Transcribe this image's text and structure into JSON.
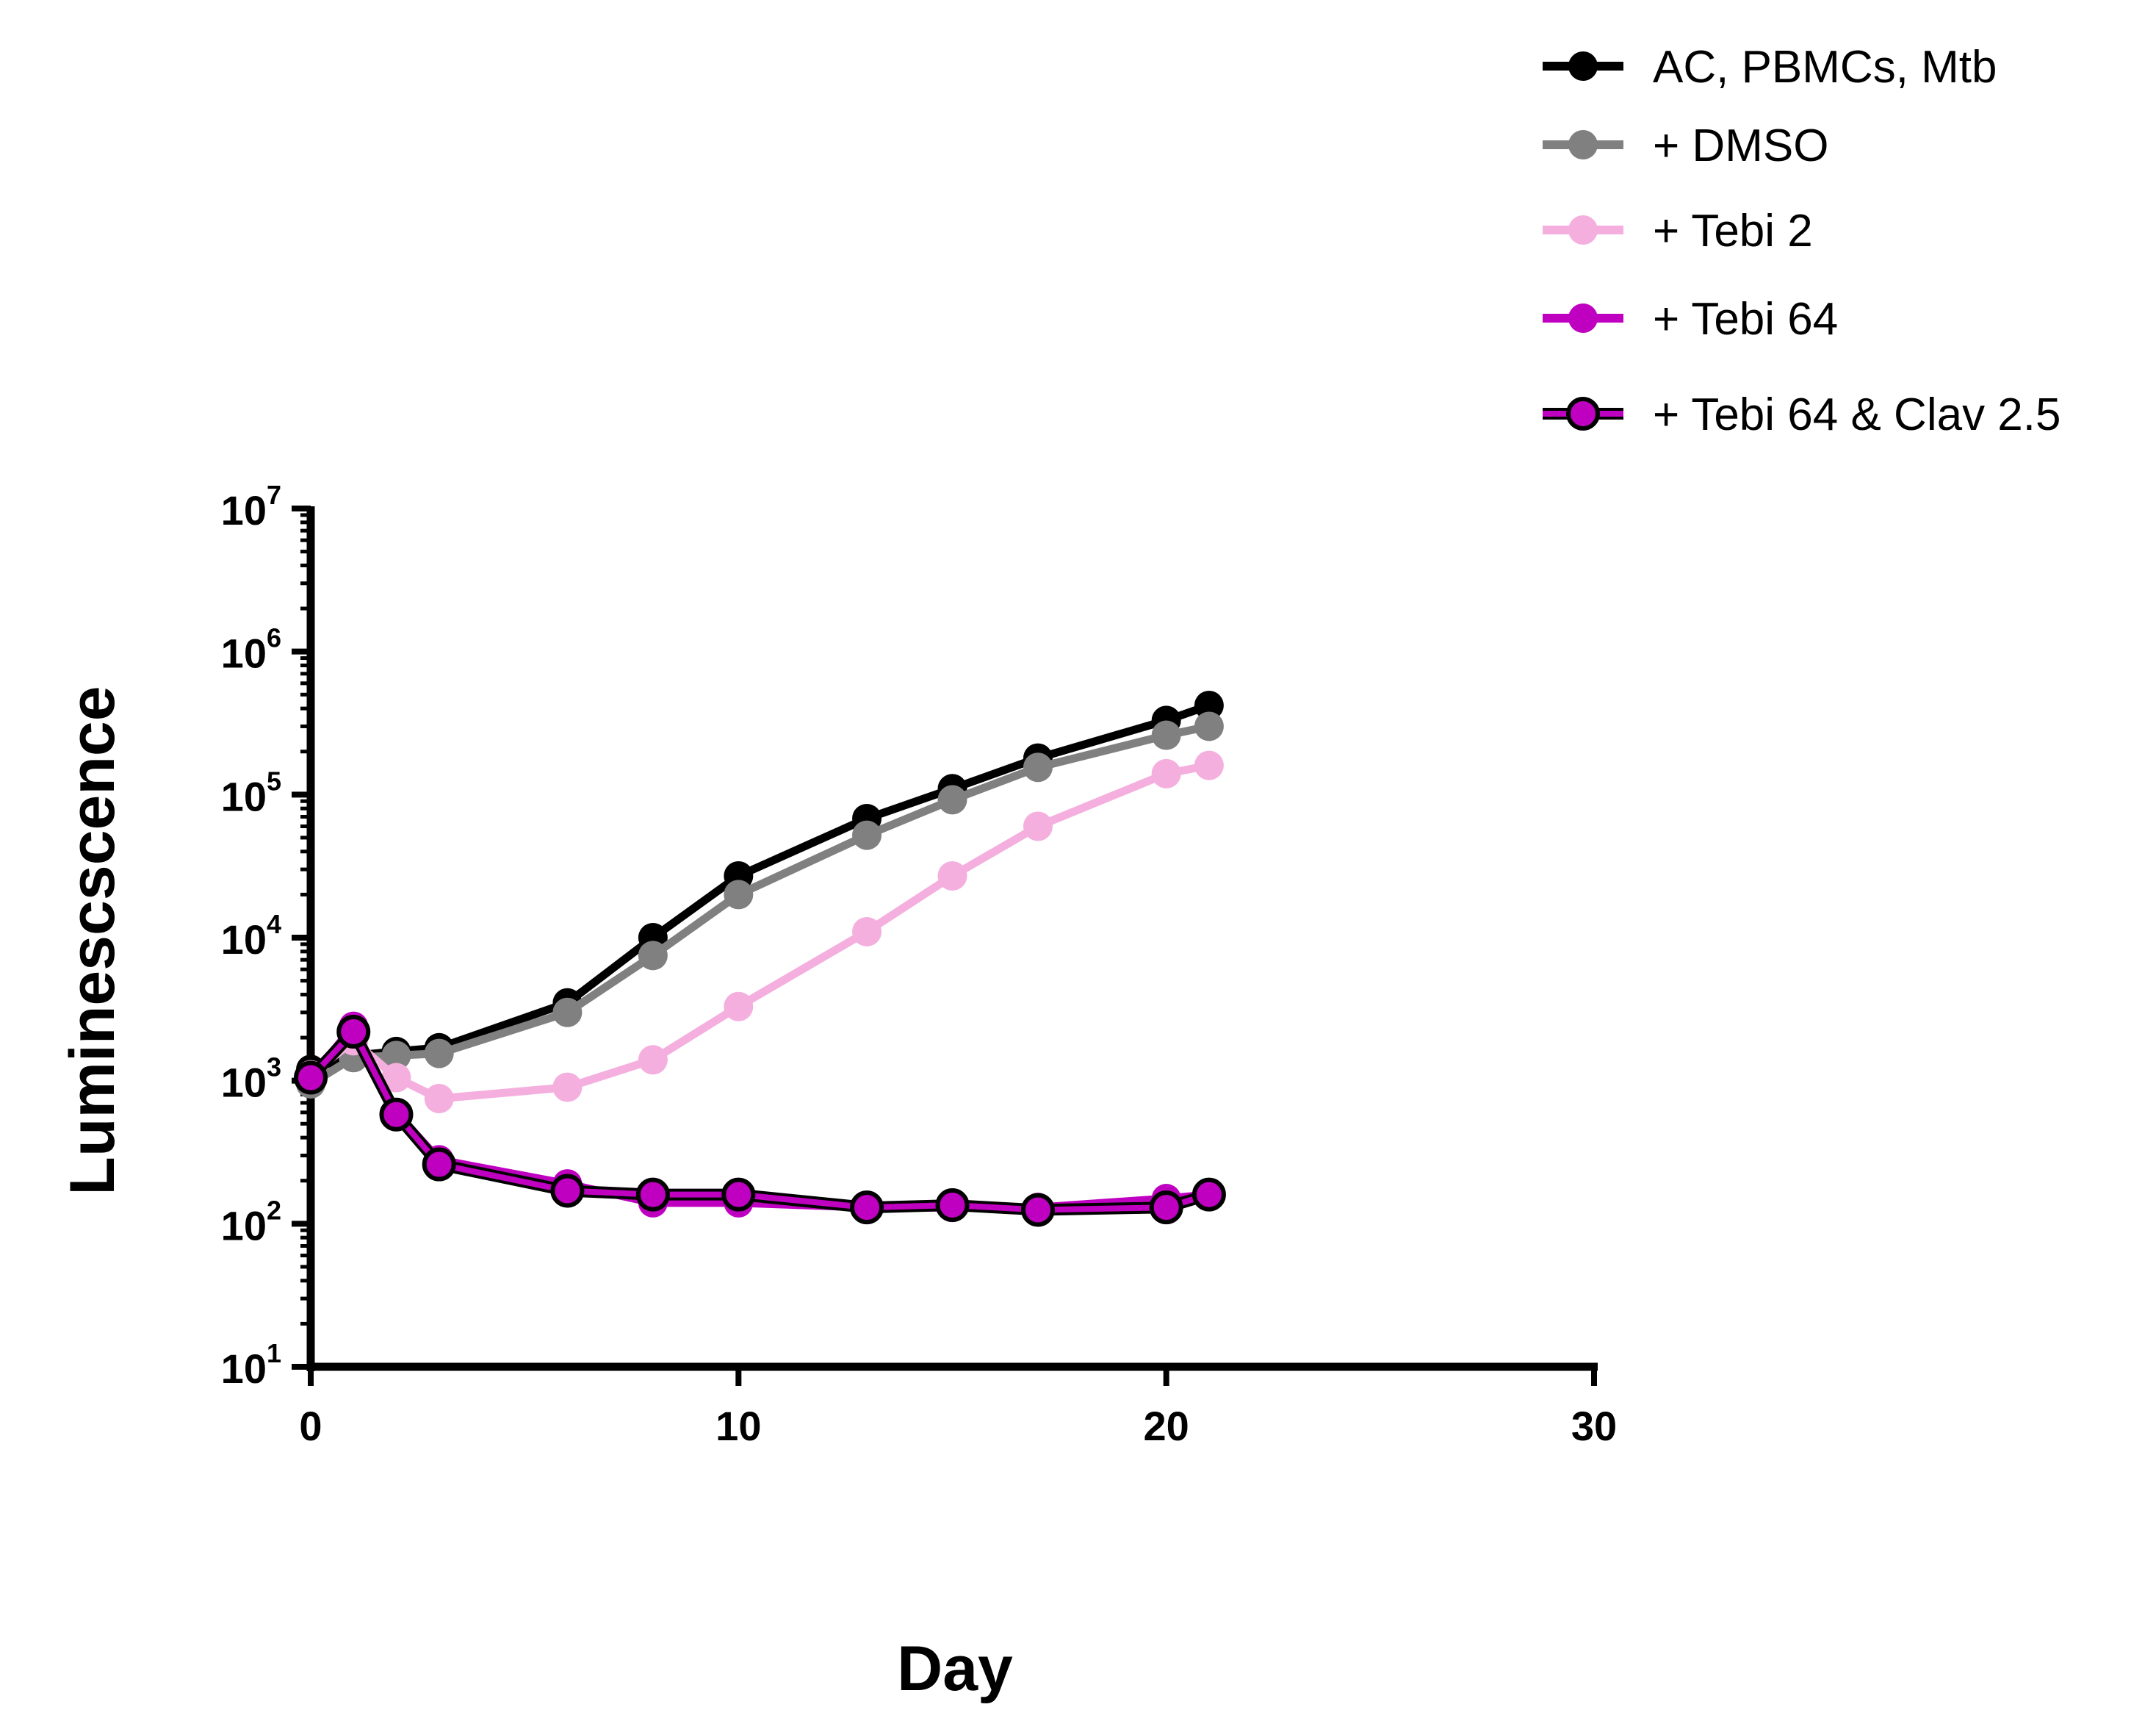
{
  "chart_data": {
    "type": "line",
    "title": "",
    "xlabel": "Day",
    "ylabel": "Luminescscence",
    "xlim": [
      0,
      30
    ],
    "ylim": [
      10,
      10000000
    ],
    "yscale": "log",
    "x_ticks": [
      "0",
      "10",
      "20",
      "30"
    ],
    "y_ticks": [
      {
        "base": "10",
        "exp": "1"
      },
      {
        "base": "10",
        "exp": "2"
      },
      {
        "base": "10",
        "exp": "3"
      },
      {
        "base": "10",
        "exp": "4"
      },
      {
        "base": "10",
        "exp": "5"
      },
      {
        "base": "10",
        "exp": "6"
      },
      {
        "base": "10",
        "exp": "7"
      }
    ],
    "legend_position": "top-right",
    "series": [
      {
        "name": "AC, PBMCs, Mtb",
        "color": "#000000",
        "edge": "#000000",
        "x": [
          0,
          1,
          2,
          3,
          6,
          8,
          10,
          13,
          15,
          17,
          20,
          21
        ],
        "y": [
          1200,
          1500,
          1600,
          1700,
          3500,
          10000,
          27000,
          68000,
          110000,
          180000,
          330000,
          420000
        ]
      },
      {
        "name": "+ DMSO",
        "color": "#808080",
        "edge": "#808080",
        "x": [
          0,
          1,
          2,
          3,
          6,
          8,
          10,
          13,
          15,
          17,
          20,
          21
        ],
        "y": [
          950,
          1450,
          1500,
          1550,
          3000,
          7500,
          20000,
          52000,
          92000,
          155000,
          260000,
          300000
        ]
      },
      {
        "name": "+ Tebi 2",
        "color": "#F4AFDE",
        "edge": "#F4AFDE",
        "x": [
          0,
          1,
          2,
          3,
          6,
          8,
          10,
          13,
          15,
          17,
          20,
          21
        ],
        "y": [
          1100,
          1900,
          1050,
          750,
          900,
          1400,
          3300,
          11000,
          27000,
          60000,
          140000,
          160000
        ]
      },
      {
        "name": "+ Tebi 64",
        "color": "#C000C0",
        "edge": "#C000C0",
        "x": [
          0,
          1,
          2,
          3,
          6,
          8,
          10,
          13,
          15,
          17,
          20,
          21
        ],
        "y": [
          1050,
          2400,
          600,
          280,
          190,
          140,
          140,
          130,
          130,
          130,
          150,
          160
        ]
      },
      {
        "name": "+ Tebi 64 & Clav 2.5",
        "color": "#C000C0",
        "edge": "#000000",
        "x": [
          0,
          1,
          2,
          3,
          6,
          8,
          10,
          13,
          15,
          17,
          20,
          21
        ],
        "y": [
          1050,
          2200,
          580,
          260,
          170,
          160,
          160,
          130,
          135,
          125,
          130,
          160
        ]
      }
    ]
  }
}
